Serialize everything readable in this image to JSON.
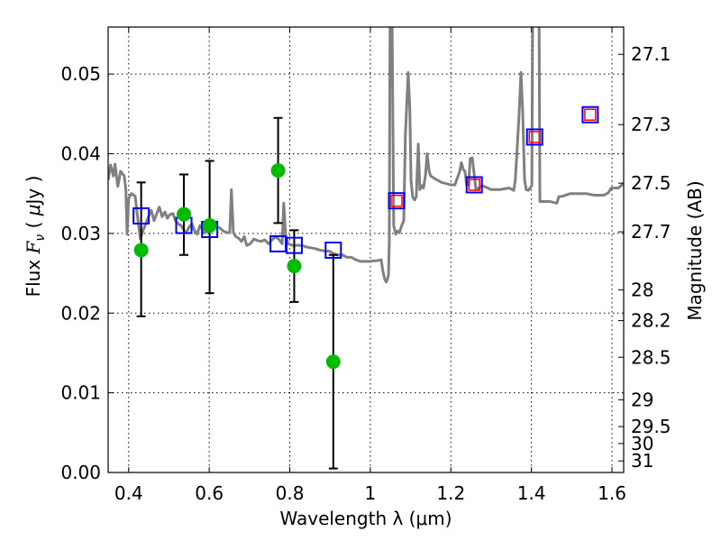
{
  "chart_data": {
    "type": "scatter",
    "xlabel": "Wavelength  λ (μm)",
    "ylabel": "Flux  F_ν  ( μJy )",
    "ylabel_parts": {
      "pre": "Flux  ",
      "var": "F",
      "sub": "ν",
      "mid": "  ( ",
      "mu": "μ",
      "post": "Jy )"
    },
    "y2label": "Magnitude (AB)",
    "xlim": [
      0.349,
      1.629
    ],
    "ylim": [
      0.0,
      0.0559
    ],
    "grid": true,
    "xticks": [
      0.4,
      0.6,
      0.8,
      1.0,
      1.2,
      1.4,
      1.6
    ],
    "xtick_labels": [
      "0.4",
      "0.6",
      "0.8",
      "1",
      "1.2",
      "1.4",
      "1.6"
    ],
    "yticks": [
      0.0,
      0.01,
      0.02,
      0.03,
      0.04,
      0.05
    ],
    "ytick_labels": [
      "0.00",
      "0.01",
      "0.02",
      "0.03",
      "0.04",
      "0.05"
    ],
    "y2ticks": [
      27.1,
      27.3,
      27.5,
      27.7,
      28,
      28.2,
      28.5,
      29,
      29.5,
      30,
      31
    ],
    "y2tick_labels": [
      "27.1",
      "27.3",
      "27.5",
      "27.7",
      "28",
      "28.2",
      "28.5",
      "29",
      "29.5",
      "30",
      "31"
    ],
    "magnitude_zeropoint": 23.9,
    "colors": {
      "spectrum": "#808080",
      "observed": "#00bb00",
      "model_blue": "#0000ff",
      "model_red": "#ff0000",
      "errorbar": "#000000"
    },
    "series": [
      {
        "name": "spectrum",
        "type": "line",
        "x": [
          0.349,
          0.355,
          0.362,
          0.366,
          0.373,
          0.38,
          0.389,
          0.393,
          0.396,
          0.4,
          0.407,
          0.416,
          0.422,
          0.429,
          0.436,
          0.443,
          0.449,
          0.456,
          0.463,
          0.469,
          0.476,
          0.483,
          0.49,
          0.496,
          0.503,
          0.51,
          0.516,
          0.523,
          0.53,
          0.537,
          0.543,
          0.55,
          0.557,
          0.563,
          0.57,
          0.577,
          0.584,
          0.59,
          0.597,
          0.604,
          0.61,
          0.617,
          0.626,
          0.635,
          0.644,
          0.651,
          0.655,
          0.66,
          0.666,
          0.673,
          0.68,
          0.687,
          0.693,
          0.702,
          0.711,
          0.72,
          0.729,
          0.738,
          0.747,
          0.756,
          0.765,
          0.774,
          0.781,
          0.785,
          0.79,
          0.796,
          0.807,
          0.819,
          0.83,
          0.841,
          0.852,
          0.863,
          0.875,
          0.886,
          0.897,
          0.908,
          0.919,
          0.931,
          0.942,
          0.953,
          0.964,
          0.975,
          0.998,
          1.02,
          1.027,
          1.031,
          1.036,
          1.04,
          1.045,
          1.047,
          1.049,
          1.054,
          1.058,
          1.063,
          1.067,
          1.072,
          1.078,
          1.083,
          1.087,
          1.094,
          1.098,
          1.101,
          1.105,
          1.11,
          1.114,
          1.119,
          1.123,
          1.128,
          1.132,
          1.137,
          1.141,
          1.146,
          1.15,
          1.159,
          1.177,
          1.199,
          1.21,
          1.222,
          1.226,
          1.231,
          1.235,
          1.239,
          1.244,
          1.248,
          1.253,
          1.257,
          1.262,
          1.278,
          1.3,
          1.322,
          1.345,
          1.356,
          1.36,
          1.369,
          1.374,
          1.378,
          1.383,
          1.387,
          1.392,
          1.401,
          1.403,
          1.419,
          1.421,
          1.446,
          1.463,
          1.468,
          1.479,
          1.497,
          1.513,
          1.535,
          1.557,
          1.58,
          1.591,
          1.598,
          1.616,
          1.629
        ],
        "y": [
          0.0367,
          0.0386,
          0.0372,
          0.0387,
          0.0359,
          0.0378,
          0.0372,
          0.0355,
          0.0299,
          0.0344,
          0.035,
          0.0347,
          0.0321,
          0.0293,
          0.0304,
          0.0313,
          0.0321,
          0.0329,
          0.0316,
          0.0324,
          0.0333,
          0.0321,
          0.0327,
          0.0319,
          0.0324,
          0.0325,
          0.0316,
          0.0312,
          0.031,
          0.0304,
          0.0301,
          0.0308,
          0.0312,
          0.0304,
          0.0299,
          0.031,
          0.0304,
          0.0301,
          0.0304,
          0.031,
          0.0311,
          0.0309,
          0.0307,
          0.0303,
          0.0301,
          0.0301,
          0.0355,
          0.0301,
          0.0296,
          0.0294,
          0.029,
          0.0296,
          0.0285,
          0.0287,
          0.0293,
          0.0291,
          0.029,
          0.0292,
          0.0287,
          0.0292,
          0.0296,
          0.0292,
          0.0287,
          0.0338,
          0.0296,
          0.0287,
          0.0285,
          0.0285,
          0.0285,
          0.0283,
          0.0282,
          0.0281,
          0.0279,
          0.0278,
          0.0278,
          0.0275,
          0.0273,
          0.0273,
          0.027,
          0.027,
          0.0267,
          0.0265,
          0.0265,
          0.0266,
          0.0267,
          0.0253,
          0.0242,
          0.0239,
          0.0247,
          0.0287,
          0.057,
          0.057,
          0.031,
          0.0299,
          0.0303,
          0.0301,
          0.031,
          0.0316,
          0.0423,
          0.0502,
          0.0457,
          0.0367,
          0.0346,
          0.0342,
          0.0346,
          0.0412,
          0.0355,
          0.036,
          0.0357,
          0.0373,
          0.04,
          0.0378,
          0.0372,
          0.0369,
          0.0364,
          0.0361,
          0.0361,
          0.0378,
          0.0389,
          0.038,
          0.0378,
          0.0361,
          0.0361,
          0.0394,
          0.0395,
          0.0378,
          0.0355,
          0.036,
          0.0355,
          0.0355,
          0.0357,
          0.0354,
          0.0367,
          0.0446,
          0.0502,
          0.0457,
          0.0367,
          0.0355,
          0.0354,
          0.036,
          0.057,
          0.057,
          0.034,
          0.034,
          0.0338,
          0.0346,
          0.0347,
          0.035,
          0.035,
          0.035,
          0.0348,
          0.0348,
          0.0351,
          0.0357,
          0.0357,
          0.0363
        ]
      },
      {
        "name": "observed",
        "type": "errorbar",
        "x": [
          0.431,
          0.537,
          0.601,
          0.771,
          0.811,
          0.908
        ],
        "y": [
          0.0279,
          0.0324,
          0.031,
          0.0379,
          0.0259,
          0.0139
        ],
        "y_low": [
          0.0196,
          0.0273,
          0.0225,
          0.0313,
          0.0214,
          0.0005
        ],
        "y_high": [
          0.0364,
          0.0374,
          0.0391,
          0.0445,
          0.0304,
          0.0273
        ]
      },
      {
        "name": "model_synthetic_blue",
        "type": "scatter",
        "x": [
          0.431,
          0.537,
          0.601,
          0.771,
          0.811,
          0.908,
          1.065,
          1.258,
          1.408,
          1.546
        ],
        "y": [
          0.0322,
          0.031,
          0.0305,
          0.0287,
          0.0285,
          0.0279,
          0.0341,
          0.0361,
          0.0421,
          0.0449
        ]
      },
      {
        "name": "model_synthetic_red",
        "type": "scatter",
        "x": [
          1.065,
          1.258,
          1.408,
          1.546
        ],
        "y": [
          0.0341,
          0.0361,
          0.0421,
          0.0449
        ]
      }
    ]
  }
}
